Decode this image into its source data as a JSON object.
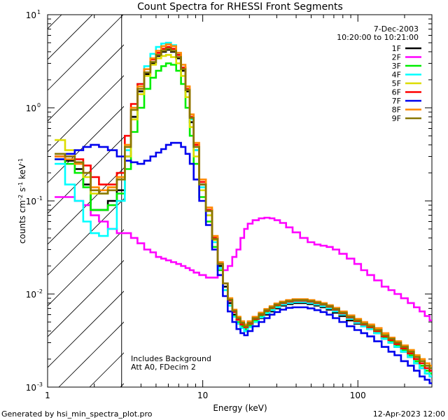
{
  "chart_data": {
    "type": "line",
    "title": "Count Spectra for RHESSI Front Segments",
    "xlabel": "Energy (keV)",
    "ylabel_parts": [
      "counts cm",
      "-2",
      " s",
      "-1",
      " keV",
      "-1"
    ],
    "xscale": "log",
    "yscale": "log",
    "xlim": [
      1,
      300
    ],
    "ylim": [
      0.001,
      10
    ],
    "x_ticks": [
      {
        "v": 1,
        "label": "1"
      },
      {
        "v": 10,
        "label": "10"
      },
      {
        "v": 100,
        "label": "100"
      }
    ],
    "y_ticks": [
      {
        "v": 0.001,
        "base": "10",
        "exp": "-3"
      },
      {
        "v": 0.01,
        "base": "10",
        "exp": "-2"
      },
      {
        "v": 0.1,
        "base": "10",
        "exp": "-1"
      },
      {
        "v": 1,
        "base": "10",
        "exp": "0"
      },
      {
        "v": 10,
        "base": "10",
        "exp": "1"
      }
    ],
    "hatched_region_x": [
      1,
      3
    ],
    "annotation_top_right": [
      "7-Dec-2003",
      "10:20:00 to 10:21:00"
    ],
    "annotation_bottom_left": [
      "Includes Background",
      "Att A0, FDecim 2"
    ],
    "footer_left": "Generated by hsi_min_spectra_plot.pro",
    "footer_right": "12-Apr-2023 12:00",
    "energy_bins_keV": [
      1.2,
      1.4,
      1.6,
      1.8,
      2.0,
      2.3,
      2.6,
      3.0,
      3.3,
      3.6,
      4.0,
      4.4,
      4.8,
      5.2,
      5.6,
      6.0,
      6.5,
      7.0,
      7.5,
      8.0,
      8.5,
      9.0,
      10,
      11,
      12,
      13,
      14,
      15,
      16,
      17,
      18,
      19,
      20,
      22,
      24,
      26,
      28,
      30,
      33,
      36,
      40,
      45,
      50,
      55,
      60,
      66,
      72,
      80,
      90,
      100,
      110,
      120,
      135,
      150,
      165,
      180,
      200,
      220,
      240,
      260,
      280,
      300
    ],
    "series": [
      {
        "name": "1F",
        "color": "#000000",
        "values": [
          0.3,
          0.27,
          0.22,
          0.15,
          0.08,
          0.08,
          0.1,
          0.13,
          0.3,
          0.8,
          1.5,
          2.3,
          3.0,
          3.6,
          4.0,
          4.2,
          4.0,
          3.4,
          2.5,
          1.5,
          0.7,
          0.35,
          0.15,
          0.08,
          0.04,
          0.02,
          0.012,
          0.008,
          0.006,
          0.005,
          0.0045,
          0.004,
          0.0045,
          0.005,
          0.0055,
          0.006,
          0.0065,
          0.007,
          0.0075,
          0.0078,
          0.008,
          0.008,
          0.0078,
          0.0075,
          0.0072,
          0.0068,
          0.0063,
          0.0058,
          0.0052,
          0.0048,
          0.0045,
          0.0042,
          0.0038,
          0.0033,
          0.003,
          0.0027,
          0.0024,
          0.0021,
          0.0018,
          0.0016,
          0.0014,
          0.0013
        ]
      },
      {
        "name": "2F",
        "color": "#ff00ff",
        "values": [
          0.11,
          0.11,
          0.1,
          0.09,
          0.07,
          0.06,
          0.05,
          0.045,
          0.045,
          0.04,
          0.035,
          0.03,
          0.028,
          0.025,
          0.024,
          0.023,
          0.022,
          0.021,
          0.02,
          0.019,
          0.018,
          0.017,
          0.016,
          0.015,
          0.015,
          0.016,
          0.018,
          0.02,
          0.025,
          0.03,
          0.04,
          0.05,
          0.057,
          0.062,
          0.065,
          0.066,
          0.065,
          0.062,
          0.058,
          0.052,
          0.046,
          0.04,
          0.036,
          0.034,
          0.033,
          0.032,
          0.03,
          0.027,
          0.024,
          0.021,
          0.018,
          0.016,
          0.014,
          0.012,
          0.011,
          0.01,
          0.009,
          0.008,
          0.0072,
          0.0065,
          0.0058,
          0.0052
        ]
      },
      {
        "name": "3F",
        "color": "#00ee00",
        "values": [
          0.28,
          0.25,
          0.2,
          0.14,
          0.08,
          0.08,
          0.09,
          0.12,
          0.22,
          0.55,
          1.0,
          1.6,
          2.1,
          2.5,
          2.8,
          3.0,
          2.9,
          2.5,
          1.8,
          1.0,
          0.5,
          0.25,
          0.11,
          0.06,
          0.032,
          0.018,
          0.011,
          0.0075,
          0.0058,
          0.005,
          0.0045,
          0.0042,
          0.0046,
          0.0052,
          0.0058,
          0.0064,
          0.0069,
          0.0074,
          0.0078,
          0.0081,
          0.0083,
          0.0083,
          0.0081,
          0.0078,
          0.0075,
          0.0071,
          0.0066,
          0.0061,
          0.0055,
          0.005,
          0.0046,
          0.0043,
          0.0039,
          0.0034,
          0.0031,
          0.0028,
          0.0025,
          0.0022,
          0.0019,
          0.0017,
          0.0015,
          0.0014
        ]
      },
      {
        "name": "4F",
        "color": "#00ffff",
        "values": [
          0.25,
          0.15,
          0.1,
          0.06,
          0.045,
          0.042,
          0.05,
          0.1,
          0.35,
          1.0,
          1.8,
          2.8,
          3.8,
          4.5,
          4.9,
          5.0,
          4.7,
          3.8,
          2.7,
          1.6,
          0.75,
          0.35,
          0.14,
          0.07,
          0.036,
          0.019,
          0.011,
          0.0075,
          0.0057,
          0.0048,
          0.0043,
          0.004,
          0.0044,
          0.005,
          0.0056,
          0.0062,
          0.0067,
          0.0072,
          0.0077,
          0.008,
          0.0082,
          0.0082,
          0.008,
          0.0077,
          0.0074,
          0.007,
          0.0065,
          0.006,
          0.0054,
          0.0049,
          0.0045,
          0.0042,
          0.0038,
          0.0033,
          0.003,
          0.0027,
          0.0024,
          0.0021,
          0.0018,
          0.0016,
          0.0014,
          0.0013
        ]
      },
      {
        "name": "5F",
        "color": "#dddd00",
        "values": [
          0.45,
          0.35,
          0.25,
          0.18,
          0.12,
          0.12,
          0.14,
          0.18,
          0.3,
          0.75,
          1.4,
          2.2,
          2.9,
          3.4,
          3.6,
          3.7,
          3.5,
          3.0,
          2.2,
          1.3,
          0.62,
          0.3,
          0.13,
          0.07,
          0.038,
          0.021,
          0.013,
          0.009,
          0.0068,
          0.0057,
          0.005,
          0.0046,
          0.005,
          0.0056,
          0.0062,
          0.0068,
          0.0073,
          0.0078,
          0.0082,
          0.0085,
          0.0087,
          0.0087,
          0.0085,
          0.0082,
          0.0079,
          0.0075,
          0.007,
          0.0064,
          0.0058,
          0.0053,
          0.0049,
          0.0046,
          0.0042,
          0.0037,
          0.0034,
          0.0031,
          0.0028,
          0.0025,
          0.0022,
          0.002,
          0.0018,
          0.0017
        ]
      },
      {
        "name": "6F",
        "color": "#ff0000",
        "values": [
          0.3,
          0.3,
          0.28,
          0.24,
          0.18,
          0.15,
          0.15,
          0.2,
          0.5,
          1.1,
          1.8,
          2.6,
          3.3,
          3.9,
          4.3,
          4.5,
          4.3,
          3.7,
          2.7,
          1.6,
          0.8,
          0.4,
          0.16,
          0.08,
          0.04,
          0.021,
          0.013,
          0.0085,
          0.0064,
          0.0053,
          0.0047,
          0.0044,
          0.0048,
          0.0054,
          0.006,
          0.0066,
          0.0071,
          0.0076,
          0.008,
          0.0083,
          0.0085,
          0.0085,
          0.0083,
          0.008,
          0.0077,
          0.0073,
          0.0068,
          0.0062,
          0.0056,
          0.0051,
          0.0047,
          0.0044,
          0.004,
          0.0035,
          0.0032,
          0.0029,
          0.0026,
          0.0023,
          0.002,
          0.0018,
          0.0016,
          0.0015
        ]
      },
      {
        "name": "7F",
        "color": "#0000ee",
        "values": [
          0.28,
          0.32,
          0.35,
          0.38,
          0.4,
          0.38,
          0.35,
          0.3,
          0.27,
          0.26,
          0.25,
          0.27,
          0.3,
          0.33,
          0.36,
          0.4,
          0.42,
          0.42,
          0.38,
          0.32,
          0.25,
          0.17,
          0.1,
          0.055,
          0.03,
          0.016,
          0.0095,
          0.0065,
          0.005,
          0.0042,
          0.0038,
          0.0036,
          0.004,
          0.0045,
          0.005,
          0.0055,
          0.006,
          0.0064,
          0.0068,
          0.0071,
          0.0072,
          0.0072,
          0.007,
          0.0067,
          0.0064,
          0.006,
          0.0055,
          0.005,
          0.0045,
          0.0041,
          0.0038,
          0.0035,
          0.0031,
          0.0027,
          0.0024,
          0.0022,
          0.0019,
          0.0017,
          0.0015,
          0.0013,
          0.0012,
          0.0011
        ]
      },
      {
        "name": "8F",
        "color": "#ff8800",
        "values": [
          0.3,
          0.28,
          0.25,
          0.2,
          0.14,
          0.13,
          0.14,
          0.18,
          0.4,
          1.0,
          1.7,
          2.6,
          3.4,
          4.1,
          4.6,
          4.8,
          4.6,
          3.9,
          2.9,
          1.7,
          0.85,
          0.42,
          0.17,
          0.085,
          0.042,
          0.022,
          0.013,
          0.009,
          0.0068,
          0.0057,
          0.0051,
          0.0047,
          0.0051,
          0.0057,
          0.0063,
          0.0069,
          0.0074,
          0.0079,
          0.0083,
          0.0086,
          0.0088,
          0.0088,
          0.0086,
          0.0083,
          0.008,
          0.0076,
          0.0071,
          0.0065,
          0.0059,
          0.0054,
          0.005,
          0.0047,
          0.0043,
          0.0038,
          0.0034,
          0.0031,
          0.0028,
          0.0025,
          0.0022,
          0.002,
          0.0018,
          0.0017
        ]
      },
      {
        "name": "9F",
        "color": "#887700",
        "values": [
          0.32,
          0.3,
          0.26,
          0.2,
          0.13,
          0.12,
          0.13,
          0.17,
          0.38,
          0.95,
          1.6,
          2.4,
          3.1,
          3.7,
          4.1,
          4.3,
          4.1,
          3.5,
          2.6,
          1.55,
          0.78,
          0.38,
          0.15,
          0.078,
          0.039,
          0.021,
          0.013,
          0.0087,
          0.0066,
          0.0055,
          0.0049,
          0.0045,
          0.0049,
          0.0055,
          0.0061,
          0.0067,
          0.0072,
          0.0077,
          0.0081,
          0.0084,
          0.0086,
          0.0086,
          0.0084,
          0.0081,
          0.0078,
          0.0074,
          0.0069,
          0.0063,
          0.0057,
          0.0052,
          0.0048,
          0.0045,
          0.0041,
          0.0036,
          0.0033,
          0.003,
          0.0027,
          0.0024,
          0.0021,
          0.0019,
          0.0017,
          0.0016
        ]
      }
    ]
  }
}
